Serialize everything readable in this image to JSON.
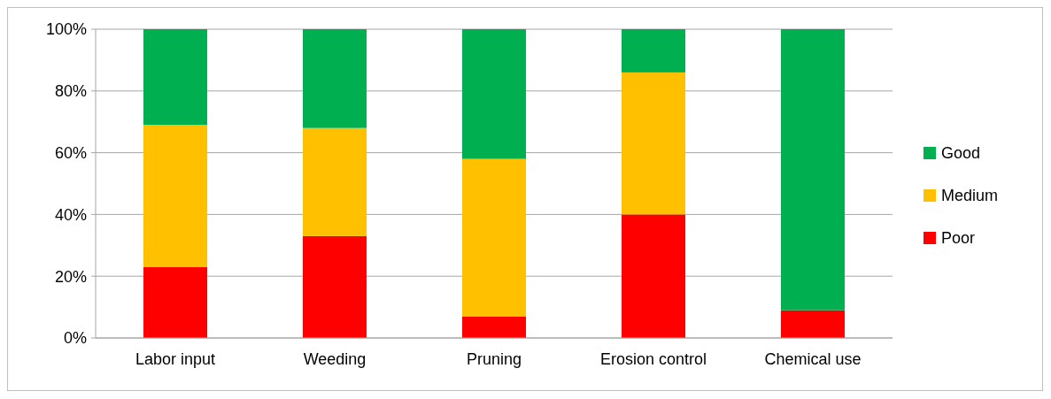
{
  "chart_data": {
    "type": "bar",
    "stacked": true,
    "categories": [
      "Labor input",
      "Weeding",
      "Pruning",
      "Erosion control",
      "Chemical use"
    ],
    "series": [
      {
        "name": "Poor",
        "color": "#ff0000",
        "values": [
          23,
          33,
          7,
          40,
          9
        ]
      },
      {
        "name": "Medium",
        "color": "#ffc000",
        "values": [
          46,
          35,
          51,
          46,
          0
        ]
      },
      {
        "name": "Good",
        "color": "#00b050",
        "values": [
          31,
          32,
          42,
          14,
          91
        ]
      }
    ],
    "ylim": [
      0,
      100
    ],
    "yticks": [
      {
        "value": 0,
        "label": "0%"
      },
      {
        "value": 20,
        "label": "20%"
      },
      {
        "value": 40,
        "label": "40%"
      },
      {
        "value": 60,
        "label": "60%"
      },
      {
        "value": 80,
        "label": "80%"
      },
      {
        "value": 100,
        "label": "100%"
      }
    ],
    "grid": "y",
    "legend": "right"
  }
}
